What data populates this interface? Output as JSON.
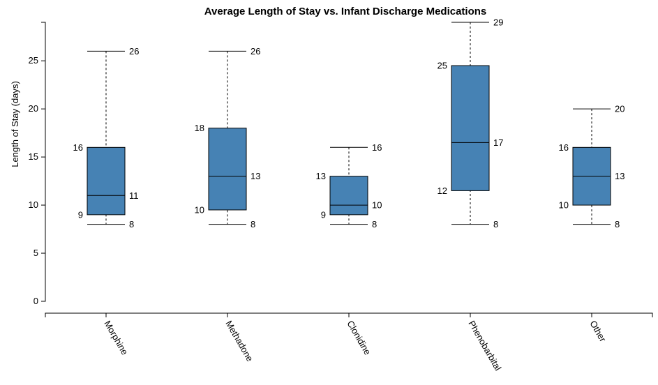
{
  "chart_data": {
    "type": "boxplot",
    "title": "Average Length of Stay vs. Infant Discharge Medications",
    "ylabel": "Length of Stay (days)",
    "xlabel": "",
    "ylim": [
      0,
      29
    ],
    "yticks": [
      0,
      5,
      10,
      15,
      20,
      25
    ],
    "box_color": "#4682b4",
    "categories": [
      "Morphine",
      "Methadone",
      "Clonidine",
      "Phenobarbital",
      "Other"
    ],
    "boxes": [
      {
        "category": "Morphine",
        "min": 8,
        "q1": 9,
        "median": 11,
        "q3": 16,
        "max": 26,
        "labels": {
          "min": "8",
          "q1": "9",
          "median": "11",
          "q3": "16",
          "max": "26"
        }
      },
      {
        "category": "Methadone",
        "min": 8,
        "q1": 9.5,
        "median": 13,
        "q3": 18,
        "max": 26,
        "labels": {
          "min": "8",
          "q1": "10",
          "median": "13",
          "q3": "18",
          "max": "26"
        }
      },
      {
        "category": "Clonidine",
        "min": 8,
        "q1": 9,
        "median": 10,
        "q3": 13,
        "max": 16,
        "labels": {
          "min": "8",
          "q1": "9",
          "median": "10",
          "q3": "13",
          "max": "16"
        }
      },
      {
        "category": "Phenobarbital",
        "min": 8,
        "q1": 11.5,
        "median": 16.5,
        "q3": 24.5,
        "max": 29,
        "labels": {
          "min": "8",
          "q1": "12",
          "median": "17",
          "q3": "25",
          "max": "29"
        }
      },
      {
        "category": "Other",
        "min": 8,
        "q1": 10,
        "median": 13,
        "q3": 16,
        "max": 20,
        "labels": {
          "min": "8",
          "q1": "10",
          "median": "13",
          "q3": "16",
          "max": "20"
        }
      }
    ]
  }
}
